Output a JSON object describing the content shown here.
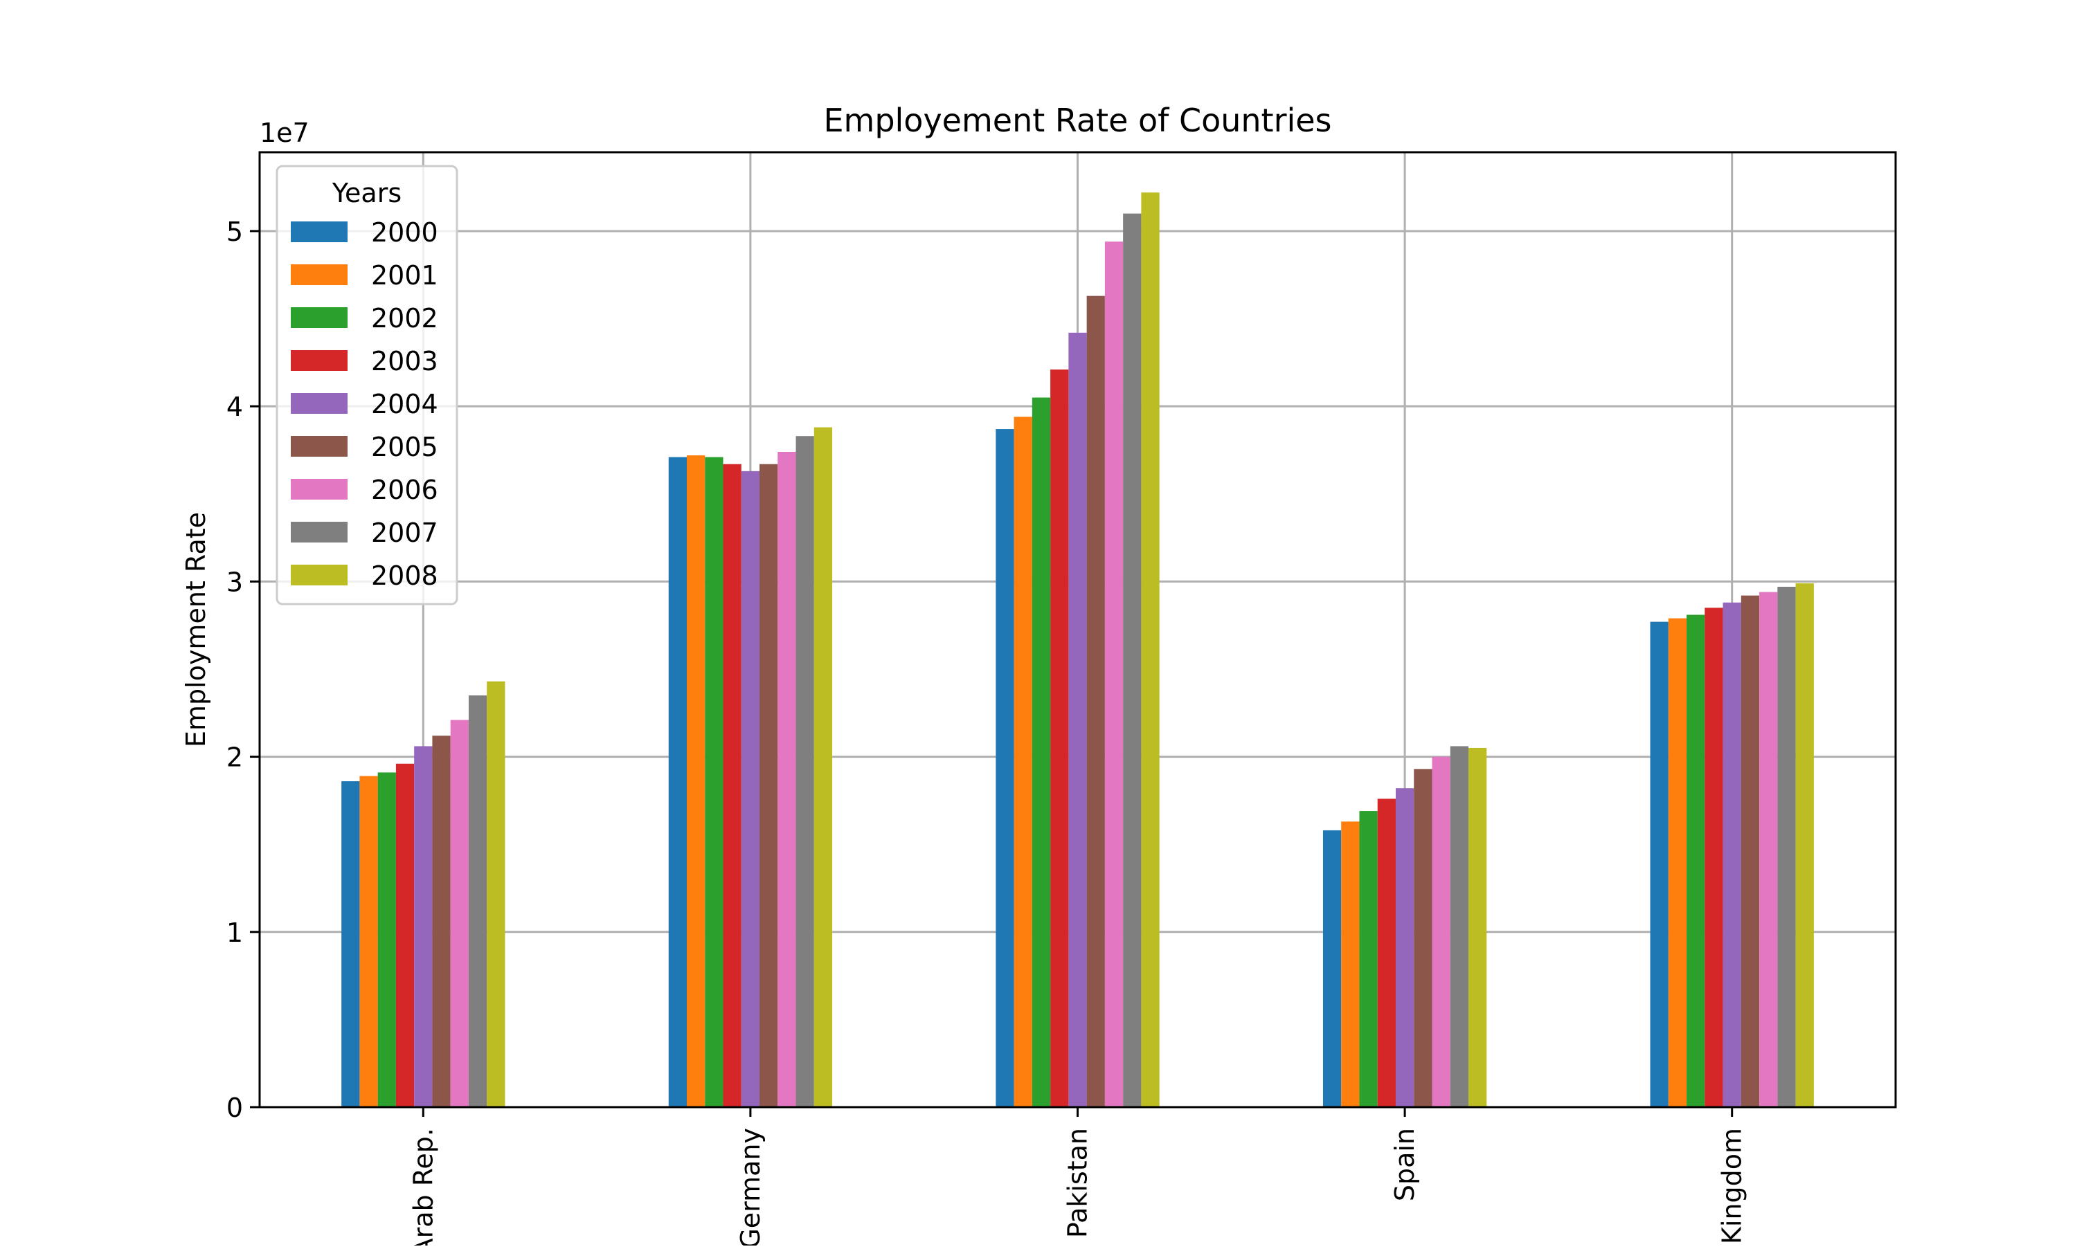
{
  "chart_data": {
    "type": "bar",
    "title": "Employement Rate of Countries",
    "xlabel": "",
    "ylabel": "Employment Rate",
    "y_offset_label": "1e7",
    "ylim": [
      0,
      5.45
    ],
    "y_ticks": [
      0,
      1,
      2,
      3,
      4,
      5
    ],
    "y_tick_labels": [
      "0",
      "1",
      "2",
      "3",
      "4",
      "5"
    ],
    "grid": true,
    "categories": [
      "Arab Rep.",
      "Germany",
      "Pakistan",
      "Spain",
      "Kingdom"
    ],
    "legend": {
      "title": "Years",
      "placement": "top-left"
    },
    "series": [
      {
        "name": "2000",
        "color": "#1f77b4",
        "values": [
          1.86,
          3.71,
          3.87,
          1.58,
          2.77
        ]
      },
      {
        "name": "2001",
        "color": "#ff7f0e",
        "values": [
          1.89,
          3.72,
          3.94,
          1.63,
          2.79
        ]
      },
      {
        "name": "2002",
        "color": "#2ca02c",
        "values": [
          1.91,
          3.71,
          4.05,
          1.69,
          2.81
        ]
      },
      {
        "name": "2003",
        "color": "#d62728",
        "values": [
          1.96,
          3.67,
          4.21,
          1.76,
          2.85
        ]
      },
      {
        "name": "2004",
        "color": "#9467bd",
        "values": [
          2.06,
          3.63,
          4.42,
          1.82,
          2.88
        ]
      },
      {
        "name": "2005",
        "color": "#8c564b",
        "values": [
          2.12,
          3.67,
          4.63,
          1.93,
          2.92
        ]
      },
      {
        "name": "2006",
        "color": "#e377c2",
        "values": [
          2.21,
          3.74,
          4.94,
          2.0,
          2.94
        ]
      },
      {
        "name": "2007",
        "color": "#7f7f7f",
        "values": [
          2.35,
          3.83,
          5.1,
          2.06,
          2.97
        ]
      },
      {
        "name": "2008",
        "color": "#bcbd22",
        "values": [
          2.43,
          3.88,
          5.22,
          2.05,
          2.99
        ]
      }
    ]
  }
}
